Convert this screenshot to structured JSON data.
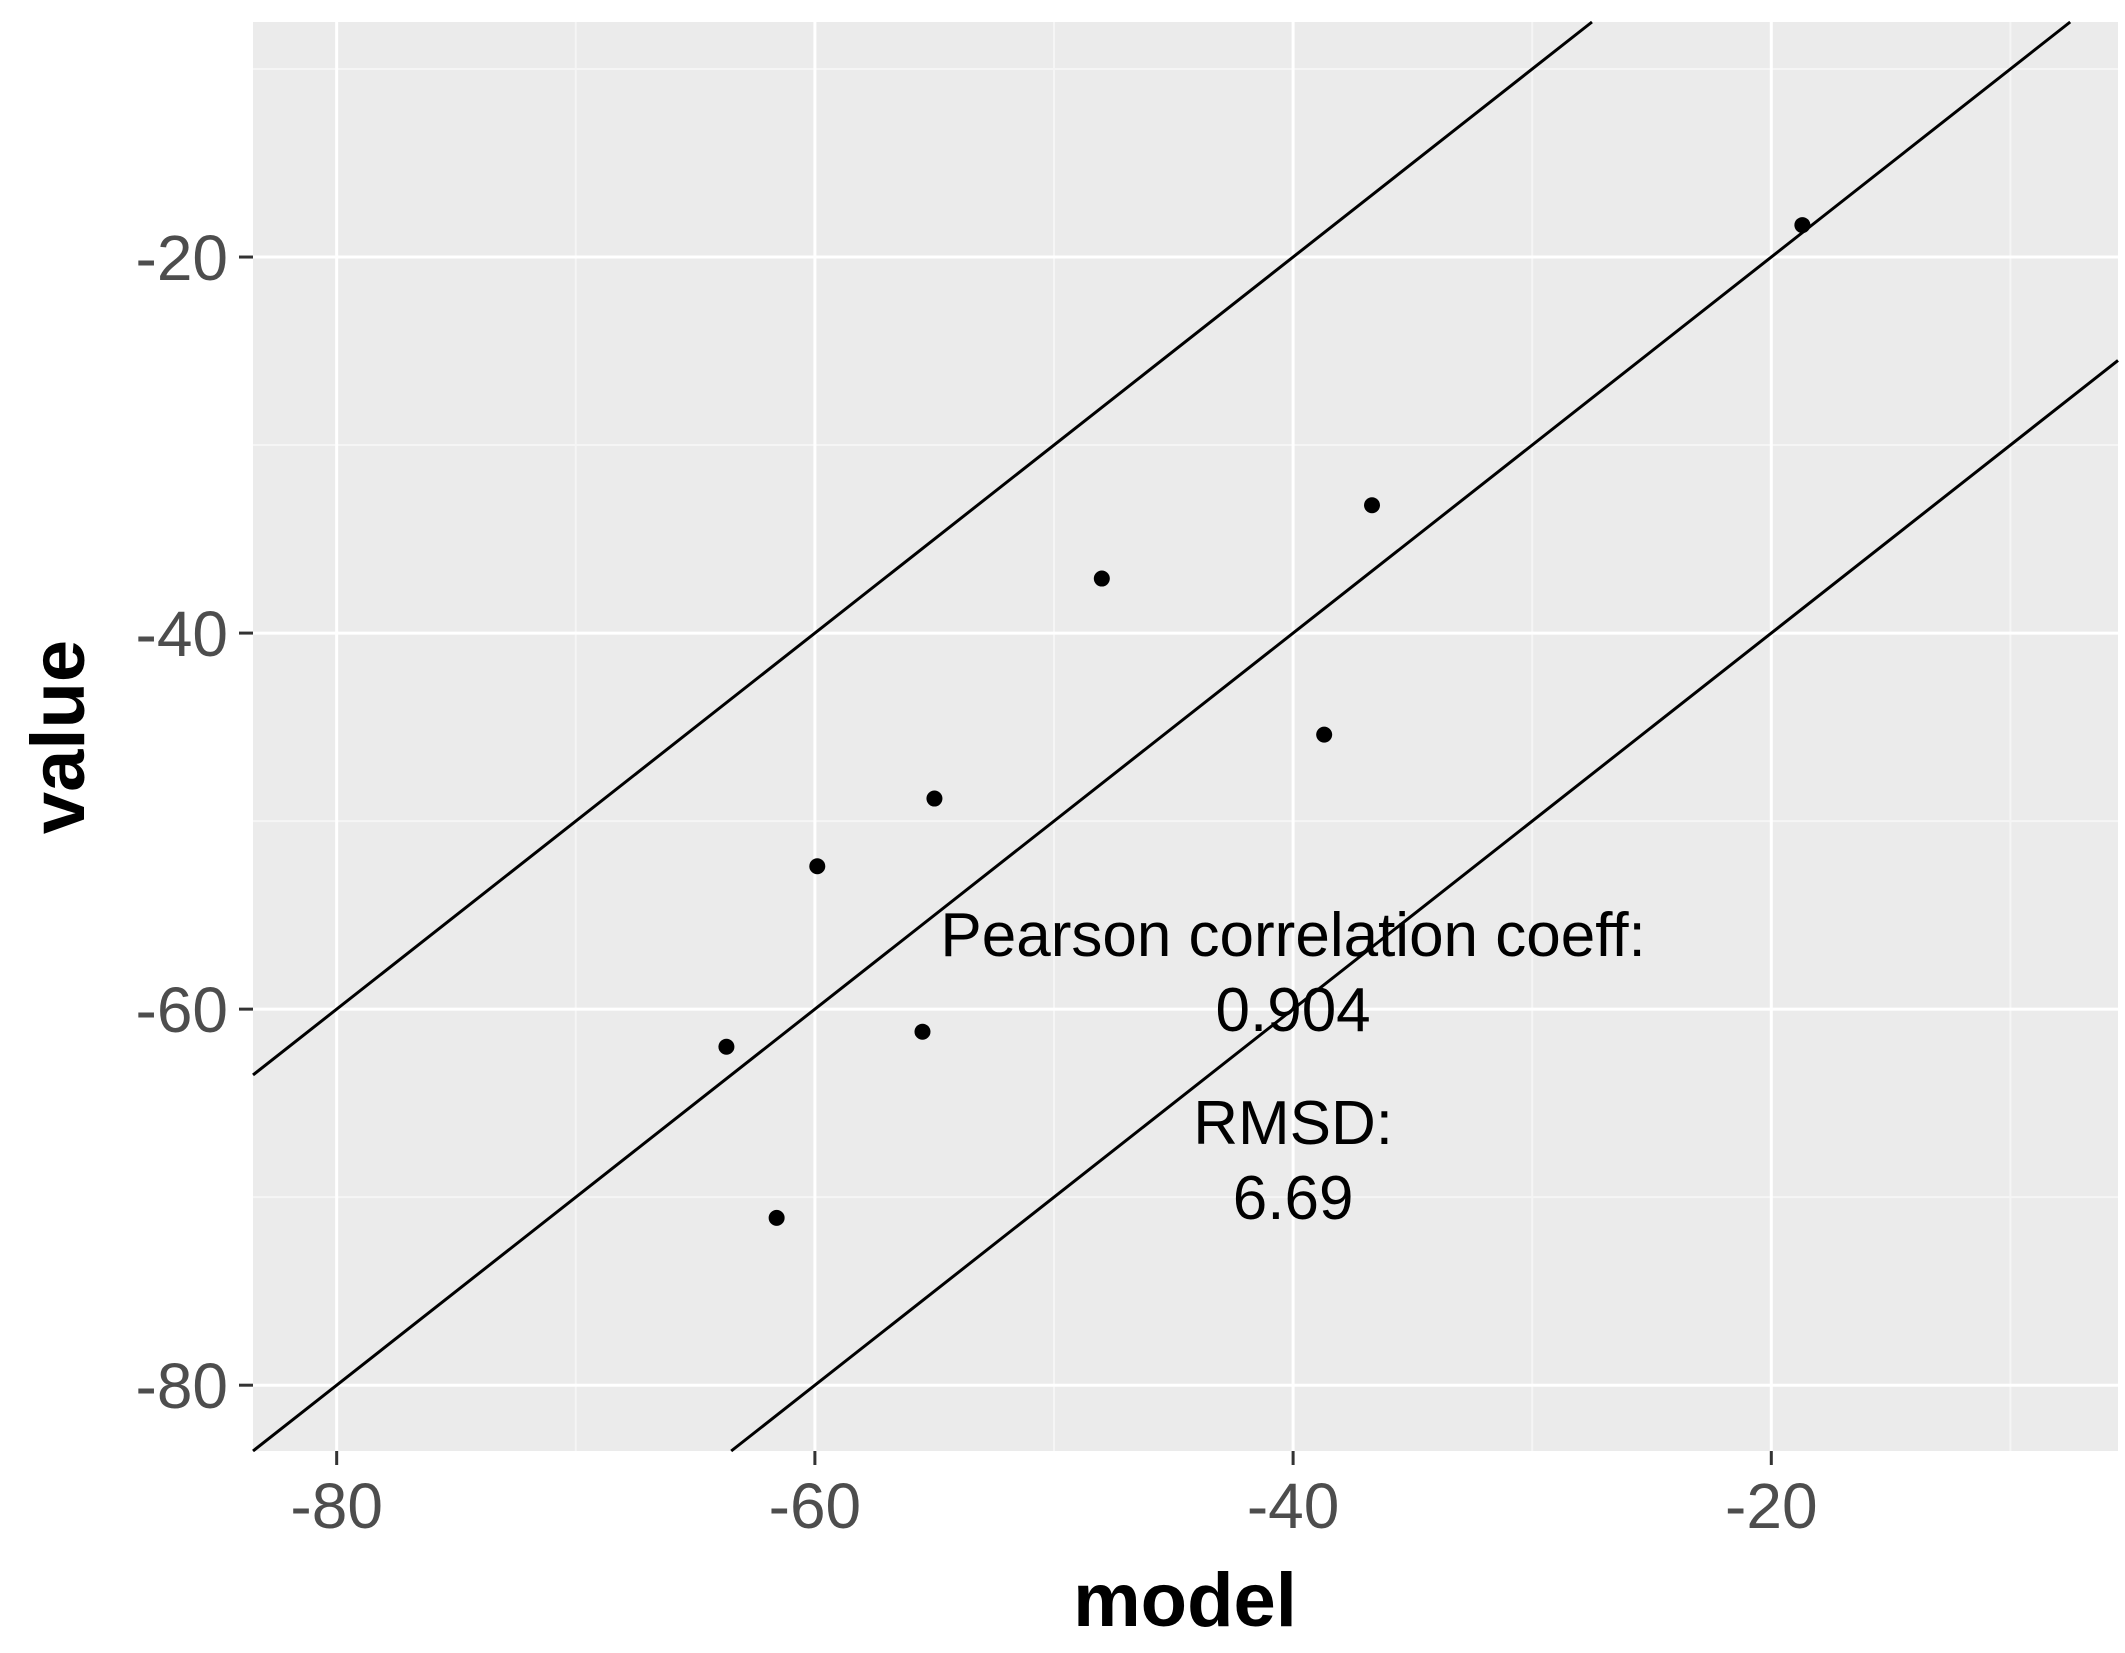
{
  "chart_data": {
    "type": "scatter",
    "title": "",
    "xlabel": "model",
    "ylabel": "value",
    "xlim": [
      -83.5,
      -5.5
    ],
    "ylim": [
      -83.5,
      -7.5
    ],
    "x_ticks": [
      -80,
      -60,
      -40,
      -20
    ],
    "y_ticks": [
      -80,
      -60,
      -40,
      -20
    ],
    "x_tick_labels": [
      "-80",
      "-60",
      "-40",
      "-20"
    ],
    "y_tick_labels": [
      "-80",
      "-60",
      "-40",
      "-20"
    ],
    "grid": true,
    "points": [
      {
        "x": -63.7,
        "y": -62.0
      },
      {
        "x": -61.6,
        "y": -71.1
      },
      {
        "x": -59.9,
        "y": -52.4
      },
      {
        "x": -55.5,
        "y": -61.2
      },
      {
        "x": -55.0,
        "y": -48.8
      },
      {
        "x": -48.0,
        "y": -37.1
      },
      {
        "x": -38.7,
        "y": -45.4
      },
      {
        "x": -36.7,
        "y": -33.2
      },
      {
        "x": -18.7,
        "y": -18.3
      }
    ],
    "reference_lines": [
      {
        "name": "identity-plus-20",
        "slope": 1,
        "intercept": 20
      },
      {
        "name": "identity",
        "slope": 1,
        "intercept": 0
      },
      {
        "name": "identity-minus-20",
        "slope": 1,
        "intercept": -20
      }
    ],
    "annotations": [
      {
        "text": "Pearson correlation coeff:",
        "x": -40,
        "y": -56
      },
      {
        "text": "0.904",
        "x": -40,
        "y": -60
      },
      {
        "text": "RMSD:",
        "x": -40,
        "y": -66
      },
      {
        "text": "6.69",
        "x": -40,
        "y": -70
      }
    ],
    "colors": {
      "panel_background": "#ebebeb",
      "grid_major": "#ffffff",
      "grid_minor": "#f5f5f5",
      "point": "#000000",
      "line": "#000000"
    }
  }
}
